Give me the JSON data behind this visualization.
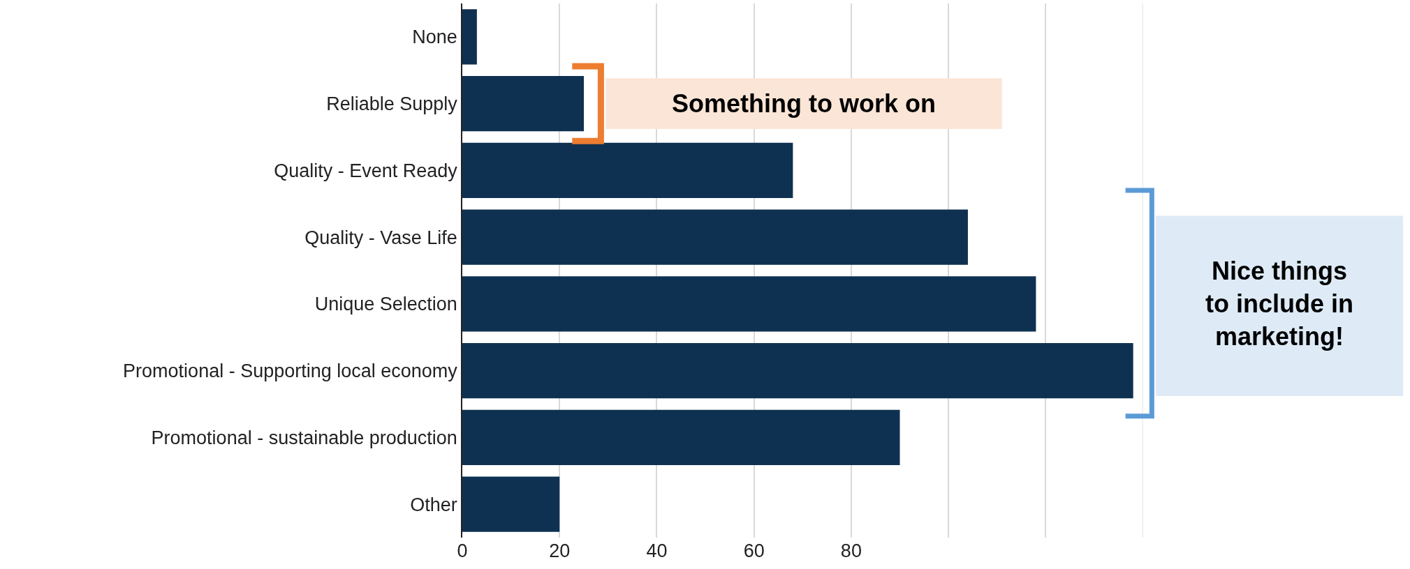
{
  "chart_data": {
    "type": "bar",
    "orientation": "horizontal",
    "categories": [
      "None",
      "Reliable Supply",
      "Quality - Event Ready",
      "Quality - Vase Life",
      "Unique Selection",
      "Promotional - Supporting local economy",
      "Promotional - sustainable production",
      "Other"
    ],
    "values": [
      3,
      25,
      68,
      104,
      118,
      138,
      90,
      20
    ],
    "color": "#0f3151",
    "xlim": [
      0,
      140
    ],
    "xticks": [
      0,
      20,
      40,
      60,
      80,
      {
        "value": 100,
        "label": null
      },
      {
        "value": 120,
        "label": null
      },
      {
        "value": 140,
        "label": null
      }
    ],
    "grid": "x",
    "annotations": [
      "Something to work on",
      "Nice things\nto include in\nmarketing!"
    ]
  }
}
